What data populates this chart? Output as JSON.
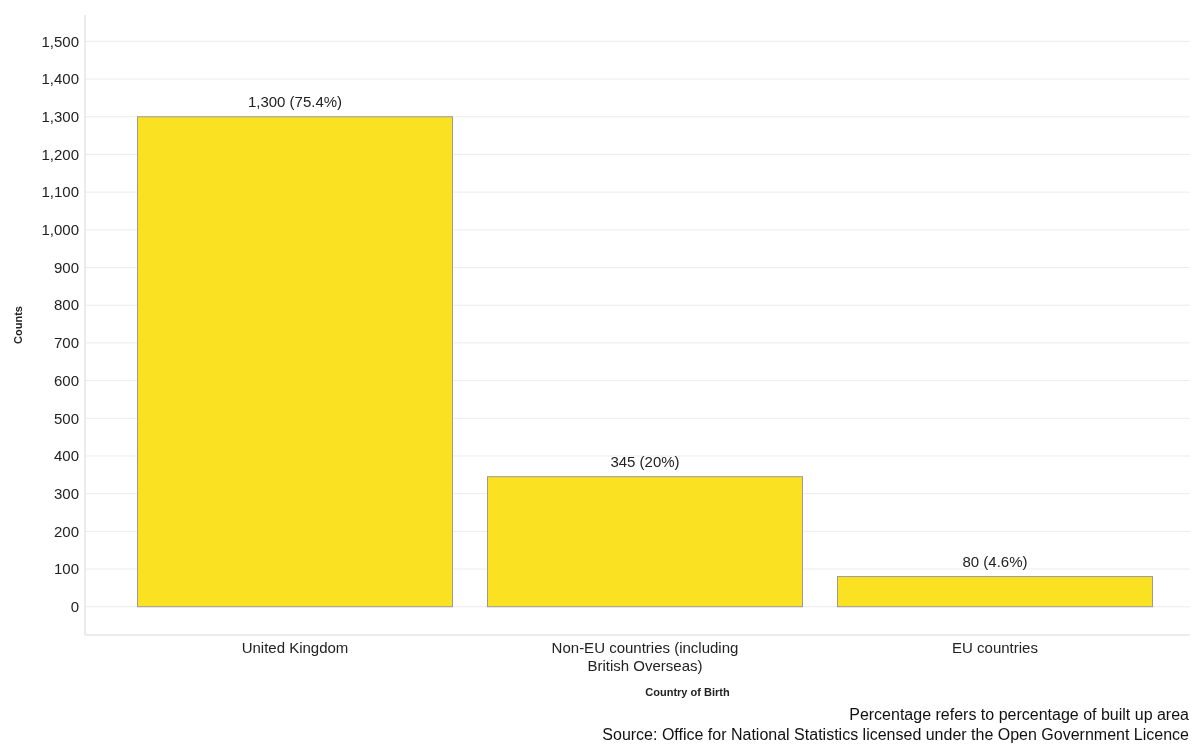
{
  "chart_data": {
    "type": "bar",
    "xlabel": "Country of Birth",
    "ylabel": "Counts",
    "categories": [
      "United Kingdom",
      "Non-EU countries (including British Overseas)",
      "EU countries"
    ],
    "values": [
      1300,
      345,
      80
    ],
    "color": "#fae122",
    "value_labels": [
      "1,300 (75.4%)",
      "345 (20%)",
      "80 (4.6%)"
    ],
    "ylim": [
      -75,
      1570
    ],
    "yticks": [
      {
        "value": 0,
        "label": "0"
      },
      {
        "value": 100,
        "label": "100"
      },
      {
        "value": 200,
        "label": "200"
      },
      {
        "value": 300,
        "label": "300"
      },
      {
        "value": 400,
        "label": "400"
      },
      {
        "value": 500,
        "label": "500"
      },
      {
        "value": 600,
        "label": "600"
      },
      {
        "value": 700,
        "label": "700"
      },
      {
        "value": 800,
        "label": "800"
      },
      {
        "value": 900,
        "label": "900"
      },
      {
        "value": 1000,
        "label": "1,000"
      },
      {
        "value": 1100,
        "label": "1,100"
      },
      {
        "value": 1200,
        "label": "1,200"
      },
      {
        "value": 1300,
        "label": "1,300"
      },
      {
        "value": 1400,
        "label": "1,400"
      },
      {
        "value": 1500,
        "label": "1,500"
      }
    ],
    "grid": "y",
    "annotations": [
      "Percentage refers to percentage of built up area",
      "Source: Office for National Statistics licensed under the Open Government Licence"
    ]
  }
}
